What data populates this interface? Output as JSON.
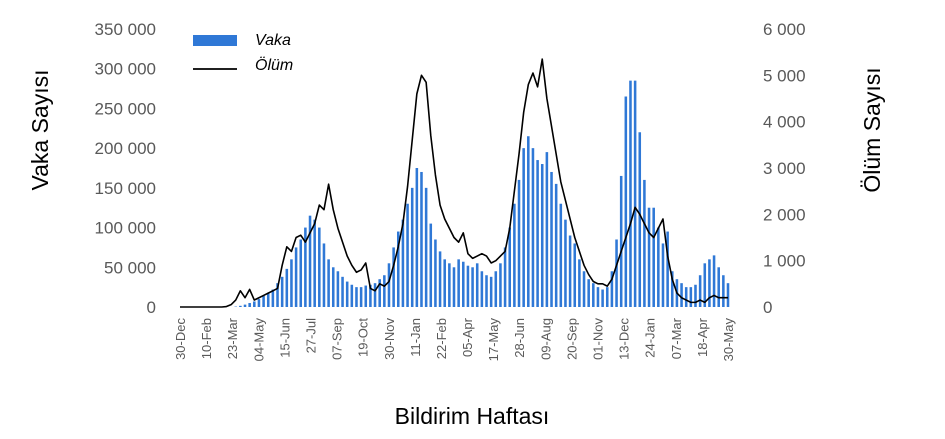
{
  "colors": {
    "bars": "#2f78d6",
    "line": "#000000"
  },
  "chart_data": {
    "type": "bar",
    "legend": [
      {
        "key": "cases",
        "label": "Vaka",
        "mark": "bar"
      },
      {
        "key": "deaths",
        "label": "Ölüm",
        "mark": "line"
      }
    ],
    "legend_position": "top-left",
    "grid": false,
    "xlabel": "Bildirim Haftası",
    "ylabel": "Vaka Sayısı",
    "y2label": "Ölüm Sayısı",
    "ylim": [
      0,
      350000
    ],
    "y2lim": [
      0,
      6000
    ],
    "yticks": [
      "0",
      "50 000",
      "100 000",
      "150 000",
      "200 000",
      "250 000",
      "300 000",
      "350 000"
    ],
    "y2ticks": [
      "0",
      "1 000",
      "2 000",
      "3 000",
      "4 000",
      "5 000",
      "6 000"
    ],
    "xticks": [
      "30-Dec",
      "10-Feb",
      "23-Mar",
      "04-May",
      "15-Jun",
      "27-Jul",
      "07-Sep",
      "19-Oct",
      "30-Nov",
      "11-Jan",
      "22-Feb",
      "05-Apr",
      "17-May",
      "28-Jun",
      "09-Aug",
      "20-Sep",
      "01-Nov",
      "13-Dec",
      "24-Jan",
      "07-Mar",
      "18-Apr",
      "30-May"
    ],
    "series": [
      {
        "name": "Vaka",
        "axis": "left",
        "values": [
          0,
          0,
          0,
          0,
          0,
          0,
          0,
          0,
          0,
          0,
          0,
          0,
          500,
          1500,
          3000,
          5000,
          7000,
          10000,
          14000,
          18000,
          22000,
          30000,
          38000,
          48000,
          60000,
          75000,
          85000,
          100000,
          115000,
          110000,
          100000,
          80000,
          60000,
          50000,
          45000,
          38000,
          32000,
          28000,
          25000,
          25000,
          27000,
          28000,
          30000,
          35000,
          40000,
          55000,
          75000,
          95000,
          110000,
          130000,
          150000,
          175000,
          170000,
          150000,
          105000,
          85000,
          70000,
          60000,
          55000,
          50000,
          60000,
          57000,
          52000,
          50000,
          55000,
          45000,
          40000,
          38000,
          45000,
          55000,
          75000,
          100000,
          130000,
          160000,
          200000,
          215000,
          200000,
          185000,
          180000,
          195000,
          170000,
          155000,
          130000,
          110000,
          90000,
          80000,
          60000,
          45000,
          35000,
          30000,
          25000,
          22000,
          25000,
          45000,
          85000,
          165000,
          265000,
          285000,
          285000,
          220000,
          160000,
          125000,
          125000,
          100000,
          80000,
          95000,
          45000,
          35000,
          30000,
          25000,
          25000,
          28000,
          40000,
          55000,
          60000,
          65000,
          50000,
          40000,
          30000
        ]
      },
      {
        "name": "Ölüm",
        "axis": "right",
        "values": [
          0,
          0,
          0,
          0,
          0,
          0,
          0,
          0,
          0,
          0,
          10,
          50,
          150,
          350,
          200,
          380,
          150,
          200,
          250,
          300,
          350,
          400,
          900,
          1300,
          1200,
          1500,
          1550,
          1400,
          1600,
          1800,
          2200,
          2100,
          2650,
          2100,
          1700,
          1400,
          1100,
          900,
          750,
          800,
          950,
          400,
          350,
          500,
          450,
          550,
          900,
          1300,
          1800,
          2600,
          3600,
          4600,
          5000,
          4850,
          3700,
          2850,
          2200,
          1900,
          1700,
          1500,
          1400,
          1600,
          1150,
          1050,
          1100,
          1150,
          1100,
          950,
          1000,
          1100,
          1200,
          1700,
          2500,
          3300,
          4200,
          4800,
          5050,
          4750,
          5350,
          4500,
          3900,
          3300,
          2700,
          2300,
          1900,
          1500,
          1200,
          900,
          700,
          550,
          500,
          500,
          450,
          600,
          900,
          1200,
          1500,
          1800,
          2150,
          2000,
          1800,
          1600,
          1500,
          1700,
          1900,
          1100,
          600,
          300,
          200,
          150,
          100,
          100,
          150,
          100,
          200,
          250,
          200,
          200,
          200
        ]
      }
    ]
  }
}
